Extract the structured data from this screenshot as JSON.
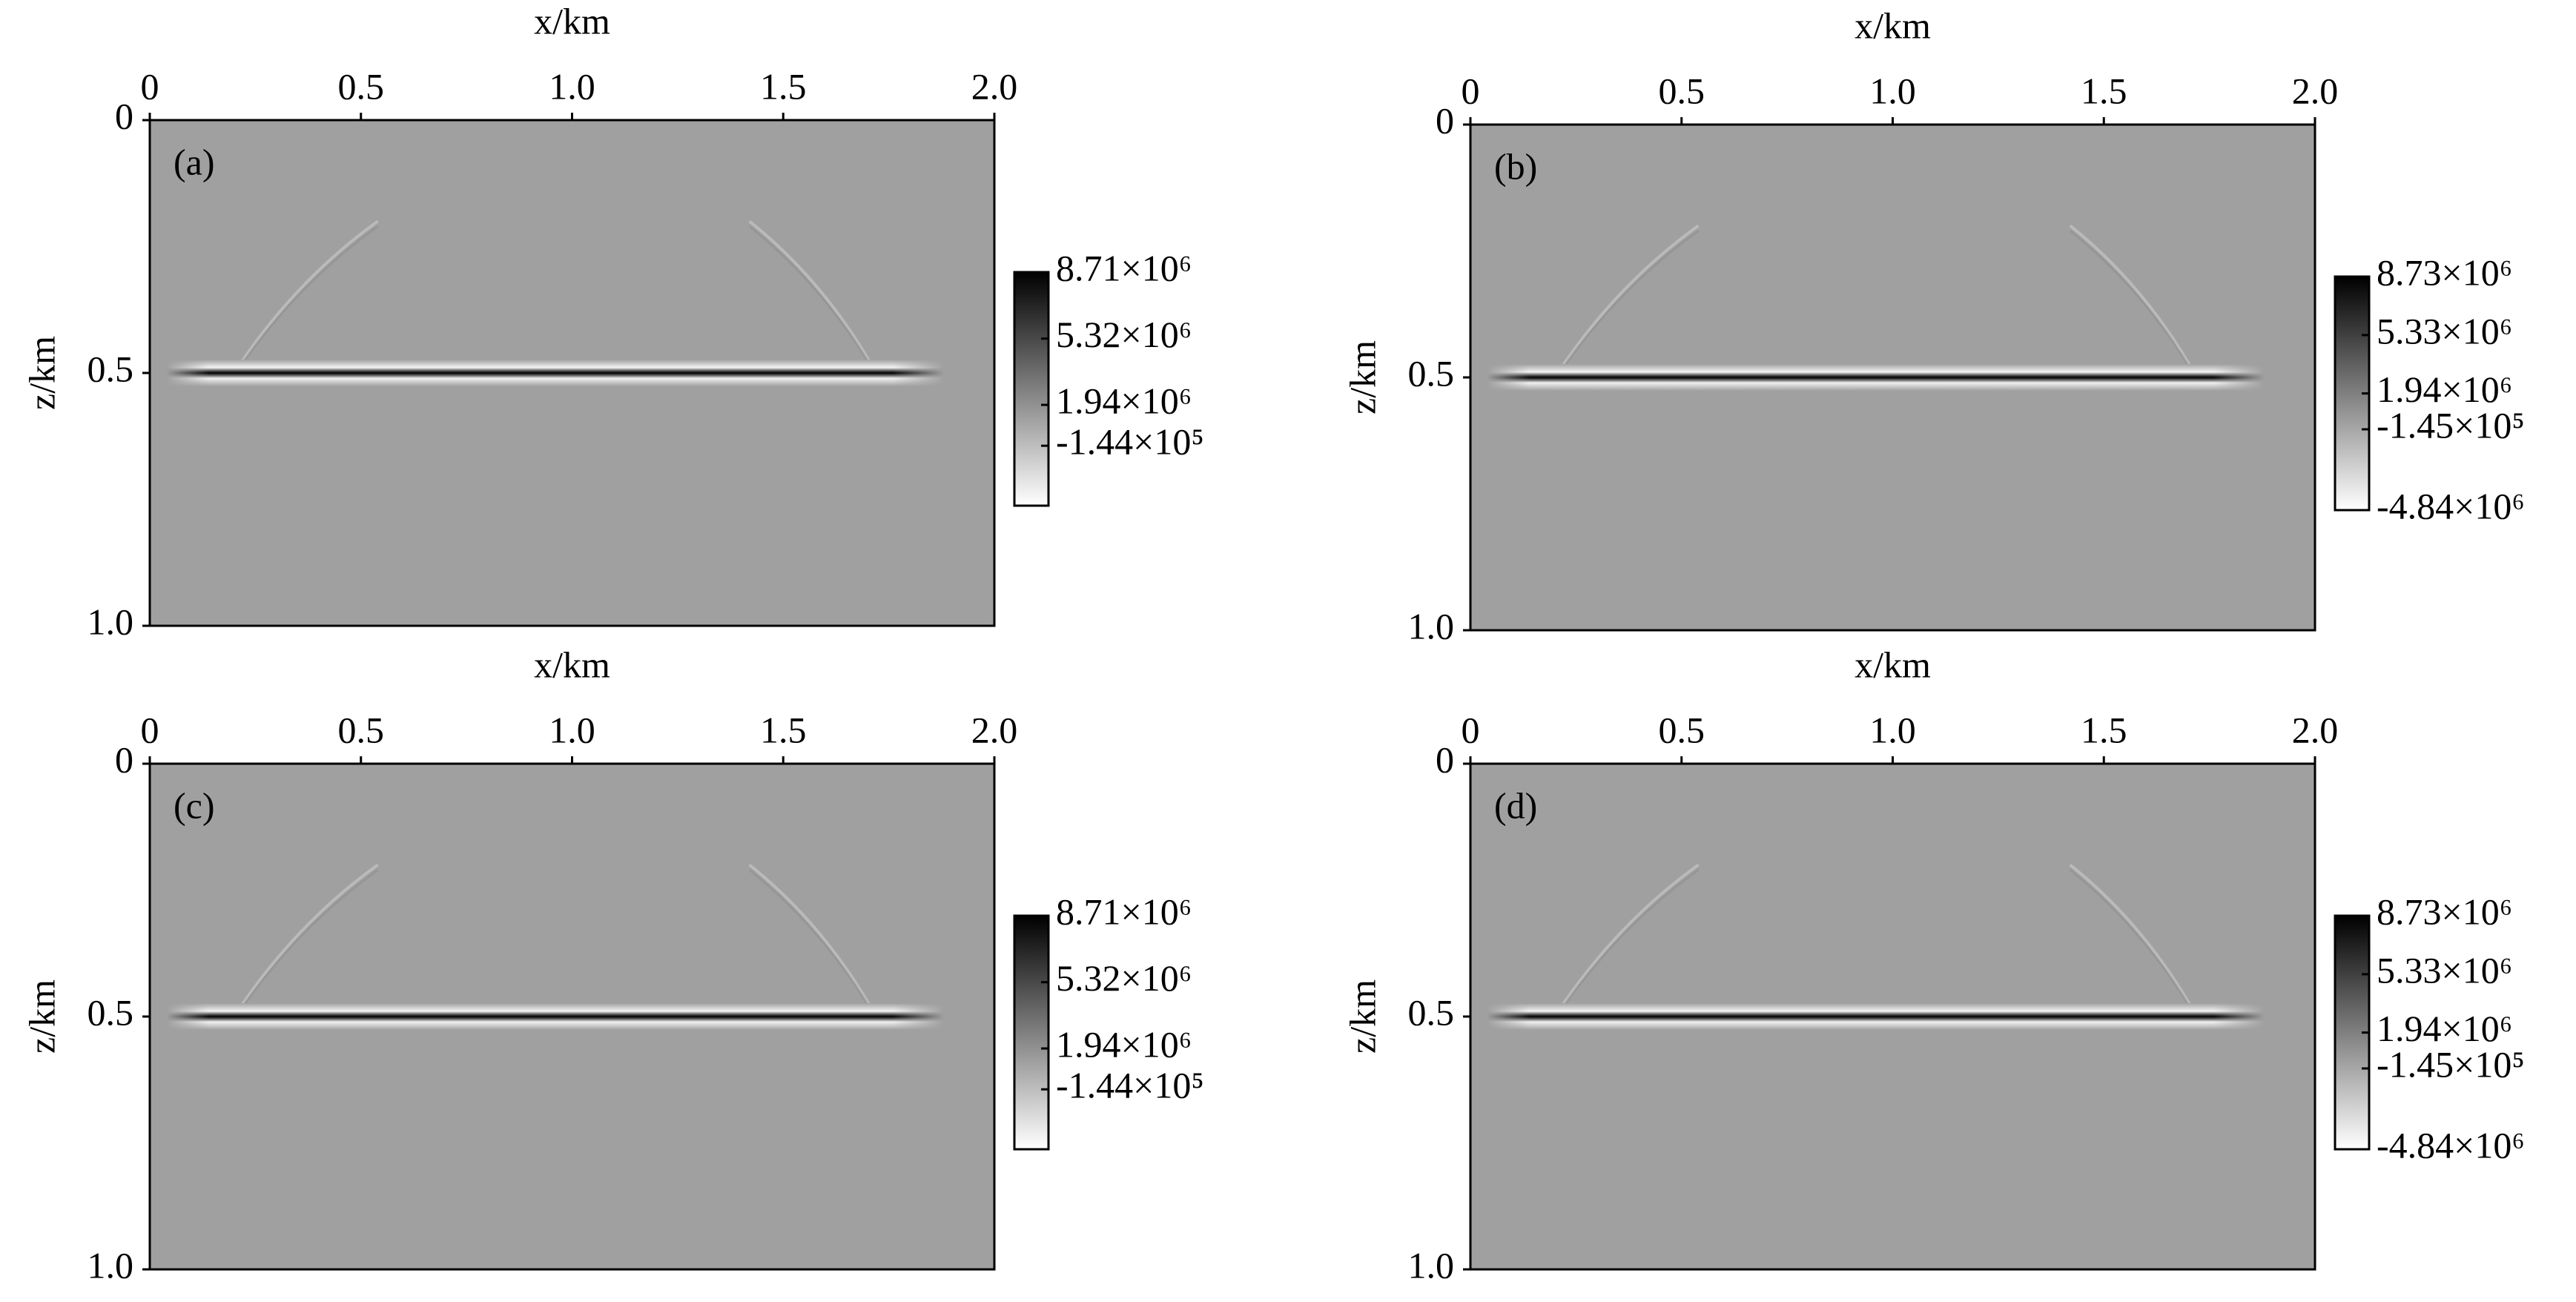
{
  "chart_data": [
    {
      "type": "heatmap",
      "label": "(a)",
      "xlabel": "x/km",
      "ylabel": "z/km",
      "xlim": [
        0,
        2
      ],
      "xticks": [
        0,
        0.5,
        {
          "value": 1,
          "label": "1.0"
        },
        1.5,
        {
          "value": 2,
          "label": "2.0"
        }
      ],
      "ylim": [
        0,
        1
      ],
      "y_inverted": true,
      "yticks": [
        0,
        0.5,
        {
          "value": 1,
          "label": "1.0"
        }
      ],
      "colorbar": {
        "clim": [
          -3200000,
          8710000
        ],
        "colors": [
          "#ffffff",
          "#000000"
        ],
        "ticks": [
          {
            "value": 8710000,
            "label": "8.71×10⁶"
          },
          {
            "value": 5320000,
            "label": "5.32×10⁶"
          },
          {
            "value": 1940000,
            "label": "1.94×10⁶"
          },
          {
            "value": -144000,
            "label": "-1.44×10⁵"
          }
        ]
      }
    },
    {
      "type": "heatmap",
      "label": "(b)",
      "xlabel": "x/km",
      "ylabel": "z/km",
      "xlim": [
        0,
        2
      ],
      "xticks": [
        0,
        0.5,
        {
          "value": 1,
          "label": "1.0"
        },
        1.5,
        {
          "value": 2,
          "label": "2.0"
        }
      ],
      "ylim": [
        0,
        1
      ],
      "y_inverted": true,
      "yticks": [
        0,
        0.5,
        {
          "value": 1,
          "label": "1.0"
        }
      ],
      "colorbar": {
        "clim": [
          -4840000,
          8730000
        ],
        "colors": [
          "#ffffff",
          "#000000"
        ],
        "ticks": [
          {
            "value": 8730000,
            "label": "8.73×10⁶"
          },
          {
            "value": 5330000,
            "label": "5.33×10⁶"
          },
          {
            "value": 1940000,
            "label": "1.94×10⁶"
          },
          {
            "value": -145000,
            "label": "-1.45×10⁵"
          },
          {
            "value": -4840000,
            "label": "-4.84×10⁶"
          }
        ]
      }
    },
    {
      "type": "heatmap",
      "label": "(c)",
      "xlabel": "x/km",
      "ylabel": "z/km",
      "xlim": [
        0,
        2
      ],
      "xticks": [
        0,
        0.5,
        {
          "value": 1,
          "label": "1.0"
        },
        1.5,
        {
          "value": 2,
          "label": "2.0"
        }
      ],
      "ylim": [
        0,
        1
      ],
      "y_inverted": true,
      "yticks": [
        0,
        0.5,
        {
          "value": 1,
          "label": "1.0"
        }
      ],
      "colorbar": {
        "clim": [
          -3200000,
          8710000
        ],
        "colors": [
          "#ffffff",
          "#000000"
        ],
        "ticks": [
          {
            "value": 8710000,
            "label": "8.71×10⁶"
          },
          {
            "value": 5320000,
            "label": "5.32×10⁶"
          },
          {
            "value": 1940000,
            "label": "1.94×10⁶"
          },
          {
            "value": -144000,
            "label": "-1.44×10⁵"
          }
        ]
      }
    },
    {
      "type": "heatmap",
      "label": "(d)",
      "xlabel": "x/km",
      "ylabel": "z/km",
      "xlim": [
        0,
        2
      ],
      "xticks": [
        0,
        0.5,
        {
          "value": 1,
          "label": "1.0"
        },
        1.5,
        {
          "value": 2,
          "label": "2.0"
        }
      ],
      "ylim": [
        0,
        1
      ],
      "y_inverted": true,
      "yticks": [
        0,
        0.5,
        {
          "value": 1,
          "label": "1.0"
        }
      ],
      "colorbar": {
        "clim": [
          -4840000,
          8730000
        ],
        "colors": [
          "#ffffff",
          "#000000"
        ],
        "ticks": [
          {
            "value": 8730000,
            "label": "8.73×10⁶"
          },
          {
            "value": 5330000,
            "label": "5.33×10⁶"
          },
          {
            "value": 1940000,
            "label": "1.94×10⁶"
          },
          {
            "value": -145000,
            "label": "-1.45×10⁵"
          },
          {
            "value": -4840000,
            "label": "-4.84×10⁶"
          }
        ]
      }
    }
  ]
}
